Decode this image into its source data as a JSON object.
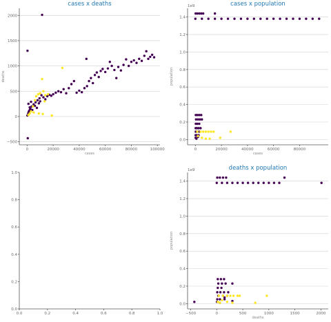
{
  "colors": {
    "purple": "#440154",
    "yellow": "#fde725",
    "title": "#1f77b4",
    "grid": "#d0d0d0"
  },
  "chart_data": [
    {
      "id": "p1",
      "type": "scatter",
      "title": "cases x deaths",
      "xlabel": "cases",
      "ylabel": "deaths",
      "xlim": [
        -6000,
        102000
      ],
      "ylim": [
        -560,
        2140
      ],
      "xticks": [
        0,
        20000,
        40000,
        60000,
        80000,
        100000
      ],
      "xtick_labels": [
        "0",
        "20000",
        "40000",
        "60000",
        "80000",
        "100000"
      ],
      "yticks": [
        -500,
        0,
        500,
        1000,
        1500,
        2000
      ],
      "ytick_labels": [
        "−500",
        "0",
        "500",
        "1000",
        "1500",
        "2000"
      ],
      "grid": "horizontal",
      "series": [
        {
          "color": "purple",
          "points": [
            [
              500,
              -430
            ],
            [
              300,
              1300
            ],
            [
              11500,
              2010
            ],
            [
              200,
              20
            ],
            [
              800,
              60
            ],
            [
              1500,
              110
            ],
            [
              2500,
              160
            ],
            [
              3500,
              200
            ],
            [
              5000,
              240
            ],
            [
              6500,
              280
            ],
            [
              8000,
              320
            ],
            [
              9500,
              360
            ],
            [
              11000,
              420
            ],
            [
              12500,
              380
            ],
            [
              14000,
              340
            ],
            [
              15500,
              400
            ],
            [
              17000,
              430
            ],
            [
              18500,
              410
            ],
            [
              20000,
              440
            ],
            [
              22000,
              470
            ],
            [
              24000,
              500
            ],
            [
              26000,
              480
            ],
            [
              28000,
              540
            ],
            [
              30000,
              460
            ],
            [
              32000,
              560
            ],
            [
              34000,
              640
            ],
            [
              36000,
              700
            ],
            [
              38000,
              470
            ],
            [
              40000,
              510
            ],
            [
              42000,
              480
            ],
            [
              44000,
              560
            ],
            [
              45500,
              1140
            ],
            [
              46000,
              600
            ],
            [
              47500,
              700
            ],
            [
              49000,
              760
            ],
            [
              50500,
              660
            ],
            [
              52000,
              820
            ],
            [
              53500,
              870
            ],
            [
              55000,
              780
            ],
            [
              56500,
              900
            ],
            [
              58000,
              940
            ],
            [
              60000,
              880
            ],
            [
              62000,
              950
            ],
            [
              63500,
              1080
            ],
            [
              65000,
              1000
            ],
            [
              67000,
              920
            ],
            [
              68500,
              760
            ],
            [
              70000,
              980
            ],
            [
              72000,
              910
            ],
            [
              74000,
              1020
            ],
            [
              76000,
              1130
            ],
            [
              78000,
              1000
            ],
            [
              80000,
              1080
            ],
            [
              82000,
              1110
            ],
            [
              84000,
              1060
            ],
            [
              86000,
              1140
            ],
            [
              88000,
              1100
            ],
            [
              90000,
              1200
            ],
            [
              91500,
              1290
            ],
            [
              93000,
              1140
            ],
            [
              94500,
              1180
            ],
            [
              96000,
              1220
            ],
            [
              97500,
              1170
            ],
            [
              1000,
              250
            ],
            [
              2000,
              180
            ],
            [
              3000,
              290
            ],
            [
              4000,
              130
            ],
            [
              6000,
              210
            ],
            [
              7500,
              170
            ],
            [
              9000,
              260
            ],
            [
              10000,
              300
            ],
            [
              1200,
              90
            ],
            [
              2200,
              140
            ]
          ]
        },
        {
          "color": "yellow",
          "points": [
            [
              1000,
              30
            ],
            [
              2000,
              60
            ],
            [
              3000,
              100
            ],
            [
              4500,
              200
            ],
            [
              6000,
              320
            ],
            [
              7000,
              400
            ],
            [
              8500,
              440
            ],
            [
              10000,
              460
            ],
            [
              11500,
              740
            ],
            [
              12500,
              500
            ],
            [
              14000,
              420
            ],
            [
              16000,
              440
            ],
            [
              19000,
              20
            ],
            [
              27000,
              960
            ],
            [
              5000,
              80
            ],
            [
              9000,
              60
            ],
            [
              12000,
              50
            ],
            [
              13500,
              300
            ]
          ]
        }
      ]
    },
    {
      "id": "p2",
      "type": "scatter",
      "title": "cases x population",
      "xlabel": "cases",
      "ylabel": "population",
      "offset_label": "1e9",
      "xlim": [
        -6000,
        102000
      ],
      "ylim": [
        -0.06,
        1.5
      ],
      "xticks": [
        0,
        20000,
        40000,
        60000,
        80000
      ],
      "xtick_labels": [
        "0",
        "20000",
        "40000",
        "60000",
        "80000"
      ],
      "yticks": [
        0.0,
        0.2,
        0.4,
        0.6,
        0.8,
        1.0,
        1.2,
        1.4
      ],
      "ytick_labels": [
        "0.0",
        "0.2",
        "0.4",
        "0.6",
        "0.8",
        "1.0",
        "1.2",
        "1.4"
      ],
      "grid": "horizontal",
      "series": [
        {
          "color": "purple",
          "points": [
            [
              200,
              1.44
            ],
            [
              1500,
              1.44
            ],
            [
              3000,
              1.44
            ],
            [
              4500,
              1.44
            ],
            [
              6000,
              1.44
            ],
            [
              15000,
              1.44
            ],
            [
              0,
              1.38
            ],
            [
              5000,
              1.38
            ],
            [
              10000,
              1.38
            ],
            [
              15000,
              1.38
            ],
            [
              20000,
              1.38
            ],
            [
              25000,
              1.38
            ],
            [
              30000,
              1.38
            ],
            [
              35000,
              1.38
            ],
            [
              40000,
              1.38
            ],
            [
              45000,
              1.38
            ],
            [
              50000,
              1.38
            ],
            [
              55000,
              1.38
            ],
            [
              60000,
              1.38
            ],
            [
              65000,
              1.38
            ],
            [
              70000,
              1.38
            ],
            [
              75000,
              1.38
            ],
            [
              80000,
              1.38
            ],
            [
              85000,
              1.38
            ],
            [
              90000,
              1.38
            ],
            [
              95000,
              1.38
            ],
            [
              300,
              0.28
            ],
            [
              1500,
              0.28
            ],
            [
              3000,
              0.28
            ],
            [
              4500,
              0.28
            ],
            [
              500,
              0.23
            ],
            [
              2000,
              0.23
            ],
            [
              3500,
              0.23
            ],
            [
              5000,
              0.23
            ],
            [
              300,
              0.18
            ],
            [
              1500,
              0.18
            ],
            [
              3000,
              0.18
            ],
            [
              200,
              0.13
            ],
            [
              1200,
              0.13
            ],
            [
              2500,
              0.13
            ],
            [
              4000,
              0.13
            ],
            [
              300,
              0.09
            ],
            [
              1500,
              0.09
            ],
            [
              3000,
              0.09
            ],
            [
              200,
              0.05
            ],
            [
              1000,
              0.05
            ],
            [
              2500,
              0.05
            ],
            [
              200,
              0.02
            ],
            [
              800,
              0.01
            ],
            [
              2000,
              0.03
            ]
          ]
        },
        {
          "color": "yellow",
          "points": [
            [
              1500,
              0.09
            ],
            [
              4000,
              0.09
            ],
            [
              6000,
              0.09
            ],
            [
              8000,
              0.09
            ],
            [
              10000,
              0.09
            ],
            [
              12000,
              0.09
            ],
            [
              14000,
              0.09
            ],
            [
              2000,
              0.04
            ],
            [
              5000,
              0.02
            ],
            [
              8000,
              0.01
            ],
            [
              11000,
              0.01
            ],
            [
              19000,
              0.02
            ],
            [
              27000,
              0.09
            ]
          ]
        }
      ]
    },
    {
      "id": "p3",
      "type": "scatter",
      "title": "",
      "xlabel": "",
      "ylabel": "",
      "xlim": [
        0,
        1
      ],
      "ylim": [
        0,
        1
      ],
      "xticks": [
        0.0,
        0.2,
        0.4,
        0.6,
        0.8,
        1.0
      ],
      "xtick_labels": [
        "0.0",
        "0.2",
        "0.4",
        "0.6",
        "0.8",
        "1.0"
      ],
      "yticks": [
        0.0,
        0.2,
        0.4,
        0.6,
        0.8,
        1.0
      ],
      "ytick_labels": [
        "0.0",
        "0.2",
        "0.4",
        "0.6",
        "0.8",
        "1.0"
      ],
      "grid": "none",
      "series": []
    },
    {
      "id": "p4",
      "type": "scatter",
      "title": "deaths x population",
      "xlabel": "deaths",
      "ylabel": "population",
      "offset_label": "1e9",
      "xlim": [
        -560,
        2140
      ],
      "ylim": [
        -0.06,
        1.5
      ],
      "xticks": [
        -500,
        0,
        500,
        1000,
        1500,
        2000
      ],
      "xtick_labels": [
        "−500",
        "0",
        "500",
        "1000",
        "1500",
        "2000"
      ],
      "yticks": [
        0.0,
        0.2,
        0.4,
        0.6,
        0.8,
        1.0,
        1.2,
        1.4
      ],
      "ytick_labels": [
        "0.0",
        "0.2",
        "0.4",
        "0.6",
        "0.8",
        "1.0",
        "1.2",
        "1.4"
      ],
      "grid": "horizontal",
      "series": [
        {
          "color": "purple",
          "points": [
            [
              10,
              1.44
            ],
            [
              60,
              1.44
            ],
            [
              120,
              1.44
            ],
            [
              180,
              1.44
            ],
            [
              1300,
              1.44
            ],
            [
              0,
              1.38
            ],
            [
              100,
              1.38
            ],
            [
              200,
              1.38
            ],
            [
              300,
              1.38
            ],
            [
              400,
              1.38
            ],
            [
              500,
              1.38
            ],
            [
              600,
              1.38
            ],
            [
              700,
              1.38
            ],
            [
              800,
              1.38
            ],
            [
              900,
              1.38
            ],
            [
              1000,
              1.38
            ],
            [
              1100,
              1.38
            ],
            [
              1200,
              1.38
            ],
            [
              2010,
              1.38
            ],
            [
              20,
              0.28
            ],
            [
              80,
              0.28
            ],
            [
              140,
              0.28
            ],
            [
              30,
              0.23
            ],
            [
              100,
              0.23
            ],
            [
              170,
              0.23
            ],
            [
              300,
              0.23
            ],
            [
              20,
              0.18
            ],
            [
              90,
              0.18
            ],
            [
              10,
              0.13
            ],
            [
              70,
              0.13
            ],
            [
              140,
              0.13
            ],
            [
              220,
              0.13
            ],
            [
              30,
              0.09
            ],
            [
              120,
              0.09
            ],
            [
              200,
              0.09
            ],
            [
              10,
              0.05
            ],
            [
              60,
              0.05
            ],
            [
              150,
              0.05
            ],
            [
              5,
              0.02
            ],
            [
              60,
              0.01
            ],
            [
              -430,
              0.02
            ],
            [
              300,
              0.03
            ],
            [
              150,
              0.07
            ]
          ]
        },
        {
          "color": "yellow",
          "points": [
            [
              40,
              0.09
            ],
            [
              120,
              0.09
            ],
            [
              200,
              0.09
            ],
            [
              260,
              0.09
            ],
            [
              320,
              0.09
            ],
            [
              400,
              0.09
            ],
            [
              440,
              0.09
            ],
            [
              100,
              0.04
            ],
            [
              200,
              0.02
            ],
            [
              300,
              0.01
            ],
            [
              740,
              0.01
            ],
            [
              960,
              0.09
            ],
            [
              20,
              0.02
            ],
            [
              60,
              0.01
            ]
          ]
        }
      ]
    }
  ]
}
